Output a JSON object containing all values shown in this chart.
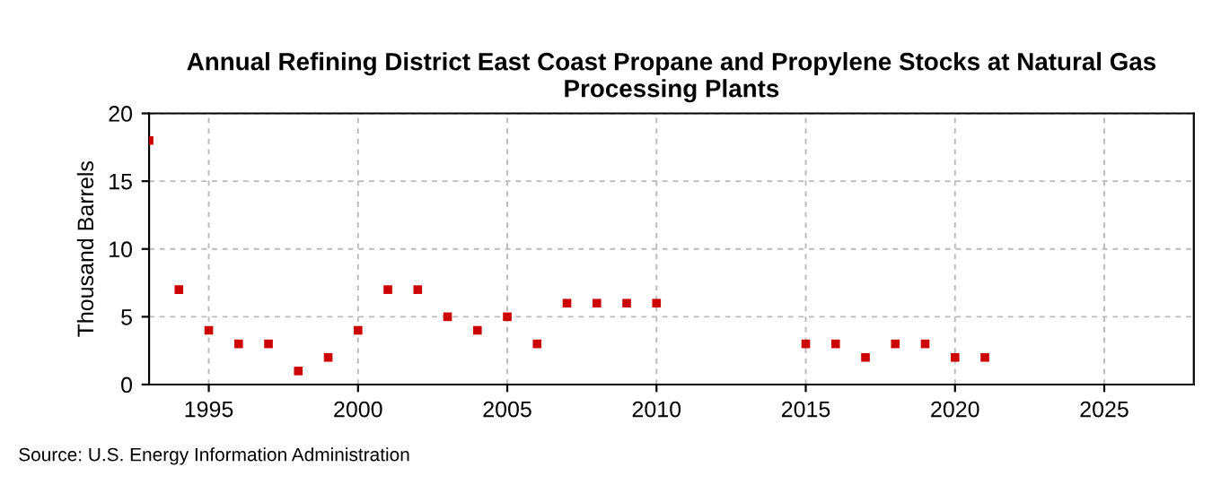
{
  "chart_data": {
    "type": "scatter",
    "title": "Annual Refining District East Coast Propane and Propylene Stocks at Natural Gas Processing Plants",
    "ylabel": "Thousand Barrels",
    "x": [
      1993,
      1994,
      1995,
      1996,
      1997,
      1998,
      1999,
      2000,
      2001,
      2002,
      2003,
      2004,
      2005,
      2006,
      2007,
      2008,
      2009,
      2010,
      2015,
      2016,
      2017,
      2018,
      2019,
      2020,
      2021
    ],
    "series": [
      {
        "color": "#cc0000",
        "values": [
          18,
          7,
          4,
          3,
          3,
          1,
          2,
          4,
          7,
          7,
          5,
          4,
          5,
          3,
          6,
          6,
          6,
          6,
          3,
          3,
          2,
          3,
          3,
          2,
          2
        ]
      }
    ],
    "xlim": [
      1993,
      2028
    ],
    "xticks": [
      1995,
      2000,
      2005,
      2010,
      2015,
      2020,
      2025
    ],
    "ylim": [
      0,
      20
    ],
    "yticks": [
      0,
      5,
      10,
      15,
      20
    ],
    "grid": true,
    "marker": "square",
    "annotations": [
      "Source: U.S. Energy Information Administration"
    ]
  }
}
